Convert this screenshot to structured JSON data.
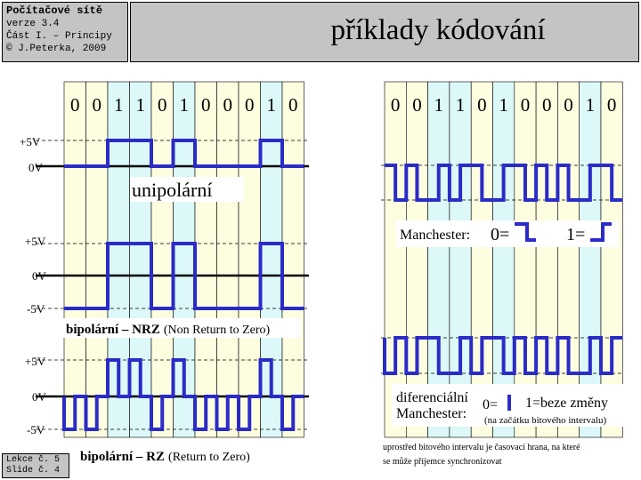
{
  "header": {
    "course_title": "Počítačové sítě",
    "version": "verze 3.4",
    "part": "Část I. – Principy",
    "copyright": "© J.Peterka, 2009"
  },
  "title": "příklady kódování",
  "footer": {
    "lesson": "Lekce č. 5",
    "slide": "Slide č. 4"
  },
  "bits": [
    "0",
    "0",
    "1",
    "1",
    "0",
    "1",
    "0",
    "0",
    "0",
    "1",
    "0"
  ],
  "left_panel": {
    "unipolar": {
      "label": "unipolární",
      "levels": [
        "+5V",
        "0V"
      ]
    },
    "nrz": {
      "label_bold": "bipolární – NRZ",
      "label_note": "(Non Return to Zero)",
      "levels": [
        "+5V",
        "0V",
        "-5V"
      ]
    },
    "rz": {
      "label_bold": "bipolární – RZ",
      "label_note": "(Return to Zero)",
      "levels": [
        "+5V",
        "0V",
        "-5V"
      ]
    }
  },
  "right_panel": {
    "manchester": {
      "label": "Manchester:",
      "zero": "0=",
      "one": "1="
    },
    "diff_manchester": {
      "label_line1": "diferenciální",
      "label_line2": "Manchester:",
      "zero": "0=",
      "one": "1=beze změny",
      "note": "(na začátku bitového intervalu)"
    },
    "footnote_line1": "uprostřed bitového intervalu je časovací hrana, na které",
    "footnote_line2": "se může příjemce synchronizovat"
  },
  "colors": {
    "header_gray": "#c4c4c4",
    "stripe_cyan": "#dcf8f8",
    "stripe_yellow": "#fdfde0",
    "signal_blue": "#2b2bc8"
  }
}
